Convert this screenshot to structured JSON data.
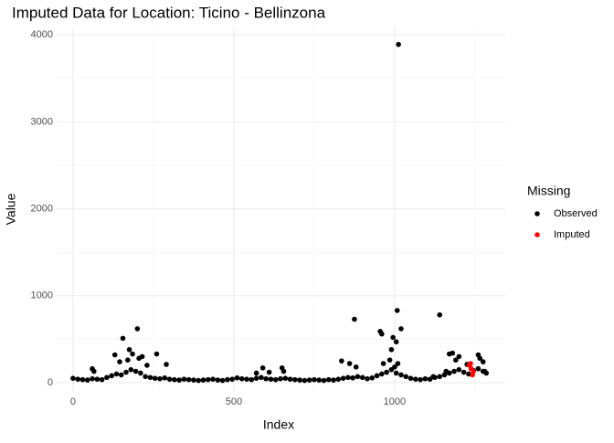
{
  "chart_data": {
    "type": "scatter",
    "title": "Imputed Data for Location: Ticino - Bellinzona",
    "x_label": "Index",
    "y_label": "Value",
    "legend_title": "Missing",
    "legend_position": "right",
    "xlim": [
      -51,
      1344
    ],
    "ylim": [
      -95,
      4086
    ],
    "xticks": [
      0,
      500,
      1000
    ],
    "yticks": [
      0,
      1000,
      2000,
      3000,
      4000
    ],
    "x_minor_grid": [
      250,
      750,
      1250
    ],
    "y_minor_grid": [
      500,
      1500,
      2500,
      3500
    ],
    "grid": true,
    "series": [
      {
        "name": "Observed",
        "color": "#000000",
        "x": [
          0,
          15,
          30,
          45,
          60,
          75,
          90,
          105,
          120,
          135,
          150,
          165,
          180,
          195,
          210,
          225,
          240,
          255,
          270,
          285,
          300,
          315,
          330,
          345,
          360,
          375,
          390,
          405,
          420,
          435,
          450,
          465,
          480,
          495,
          510,
          525,
          540,
          555,
          570,
          585,
          600,
          615,
          630,
          645,
          660,
          675,
          690,
          705,
          720,
          735,
          750,
          765,
          780,
          795,
          810,
          825,
          840,
          855,
          870,
          885,
          900,
          915,
          930,
          945,
          960,
          975,
          990,
          1005,
          1020,
          1035,
          1050,
          1065,
          1080,
          1095,
          1110,
          1125,
          1140,
          1155,
          1170,
          1185,
          1200,
          1215,
          1230,
          1245,
          1260,
          1275,
          1285,
          1012,
          1008,
          1020,
          1140,
          875,
          955,
          960,
          995,
          1005,
          990,
          155,
          200,
          175,
          185,
          215,
          205,
          260,
          130,
          145,
          230,
          290,
          170,
          60,
          65,
          590,
          570,
          610,
          650,
          655,
          835,
          860,
          880,
          965,
          985,
          1000,
          1010,
          1180,
          1170,
          1190,
          1200,
          1225,
          1260,
          1265,
          1275,
          1280,
          1160,
          1120
        ],
        "values": [
          50,
          40,
          35,
          30,
          45,
          40,
          35,
          60,
          80,
          100,
          90,
          120,
          150,
          130,
          110,
          70,
          60,
          50,
          45,
          55,
          40,
          35,
          30,
          40,
          35,
          30,
          25,
          30,
          35,
          40,
          30,
          25,
          35,
          40,
          55,
          45,
          40,
          35,
          50,
          60,
          45,
          40,
          35,
          45,
          50,
          40,
          35,
          30,
          25,
          30,
          35,
          30,
          25,
          35,
          30,
          40,
          50,
          60,
          55,
          70,
          60,
          45,
          55,
          80,
          100,
          120,
          150,
          110,
          90,
          70,
          50,
          40,
          35,
          45,
          40,
          60,
          70,
          90,
          110,
          130,
          150,
          120,
          100,
          140,
          160,
          130,
          110,
          3890,
          830,
          620,
          780,
          730,
          590,
          560,
          520,
          470,
          380,
          510,
          620,
          380,
          330,
          300,
          280,
          330,
          320,
          240,
          200,
          210,
          260,
          160,
          130,
          170,
          110,
          120,
          170,
          130,
          250,
          220,
          180,
          220,
          260,
          180,
          220,
          340,
          330,
          260,
          300,
          210,
          320,
          280,
          240,
          130,
          130,
          70
        ]
      },
      {
        "name": "Imputed",
        "color": "#ff0000",
        "x": [
          1232,
          1238,
          1242,
          1236,
          1245
        ],
        "values": [
          200,
          160,
          90,
          220,
          130
        ]
      }
    ]
  }
}
